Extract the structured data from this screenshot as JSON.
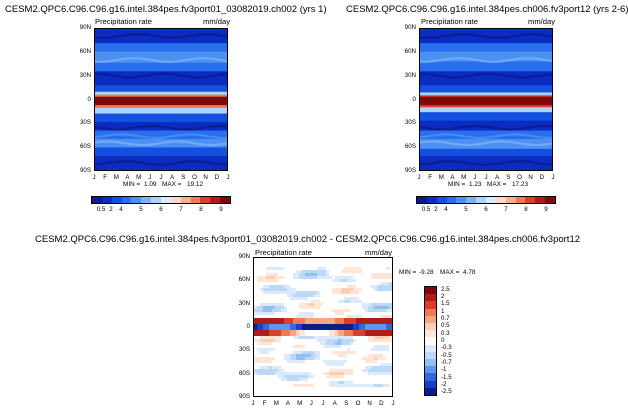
{
  "chart_data": [
    {
      "type": "heatmap",
      "title": "CESM2.QPC6.C96.C96.g16.intel.384pes.fv3port01_03082019.ch002 (yrs 1)",
      "left_label": "Precipitation rate",
      "right_label": "mm/day",
      "x_ticks": [
        "J",
        "F",
        "M",
        "A",
        "M",
        "J",
        "J",
        "A",
        "S",
        "O",
        "N",
        "D",
        "J"
      ],
      "y_ticks": [
        "90N",
        "60N",
        "30N",
        "0",
        "30S",
        "60S",
        "90S"
      ],
      "min_label": "MIN =",
      "min": "1.09",
      "max_label": "MAX =",
      "max": "19.12",
      "colorbar_labels": [
        "0.5",
        "2",
        "4",
        "5",
        "6",
        "7",
        "8",
        "9"
      ]
    },
    {
      "type": "heatmap",
      "title": "CESM2.QPC6.C96.C96.g16.intel.384pes.ch006.fv3port12 (yrs 2-6)",
      "left_label": "Precipitation rate",
      "right_label": "mm/day",
      "x_ticks": [
        "J",
        "F",
        "M",
        "A",
        "M",
        "J",
        "J",
        "A",
        "S",
        "O",
        "N",
        "D",
        "J"
      ],
      "y_ticks": [
        "90N",
        "60N",
        "30N",
        "0",
        "30S",
        "60S",
        "90S"
      ],
      "min_label": "MIN =",
      "min": "1.23",
      "max_label": "MAX =",
      "max": "17.23",
      "colorbar_labels": [
        "0.5",
        "2",
        "4",
        "5",
        "6",
        "7",
        "8",
        "9"
      ]
    },
    {
      "type": "heatmap",
      "title": "CESM2.QPC6.C96.C96.g16.intel.384pes.fv3port01_03082019.ch002 - CESM2.QPC6.C96.C96.g16.intel.384pes.ch006.fv3port12",
      "left_label": "Precipitation rate",
      "right_label": "mm/day",
      "x_ticks": [
        "J",
        "F",
        "M",
        "A",
        "M",
        "J",
        "J",
        "A",
        "S",
        "O",
        "N",
        "D",
        "J"
      ],
      "y_ticks": [
        "90N",
        "60N",
        "30N",
        "0",
        "30S",
        "60S",
        "90S"
      ],
      "min_label": "MIN =",
      "min": "-9.28",
      "max_label": "MAX =",
      "max": "4.78",
      "colorbar_labels": [
        "2.5",
        "2",
        "1.5",
        "1",
        "0.7",
        "0.5",
        "0.3",
        "0",
        "-0.3",
        "-0.5",
        "-0.7",
        "-1",
        "-1.5",
        "-2",
        "-2.5"
      ]
    }
  ],
  "palettes": {
    "precip": [
      "#0d1a8c",
      "#0a2cc0",
      "#1450e0",
      "#2a6ef0",
      "#4c90f2",
      "#79b3f5",
      "#a9d3f8",
      "#d8ecfb",
      "#fbdac6",
      "#f7b08c",
      "#f07a52",
      "#dc3e2a",
      "#b31b1b",
      "#7f0a0a"
    ],
    "diff": [
      "#7f0a0a",
      "#b31b1b",
      "#dc3e2a",
      "#f07a52",
      "#f7a583",
      "#fbcdb3",
      "#fde6d8",
      "#ffffff",
      "#dbeafb",
      "#bcd8f7",
      "#93bdf3",
      "#5f97ee",
      "#3468e0",
      "#1a3fc4",
      "#0b1c8c"
    ]
  }
}
